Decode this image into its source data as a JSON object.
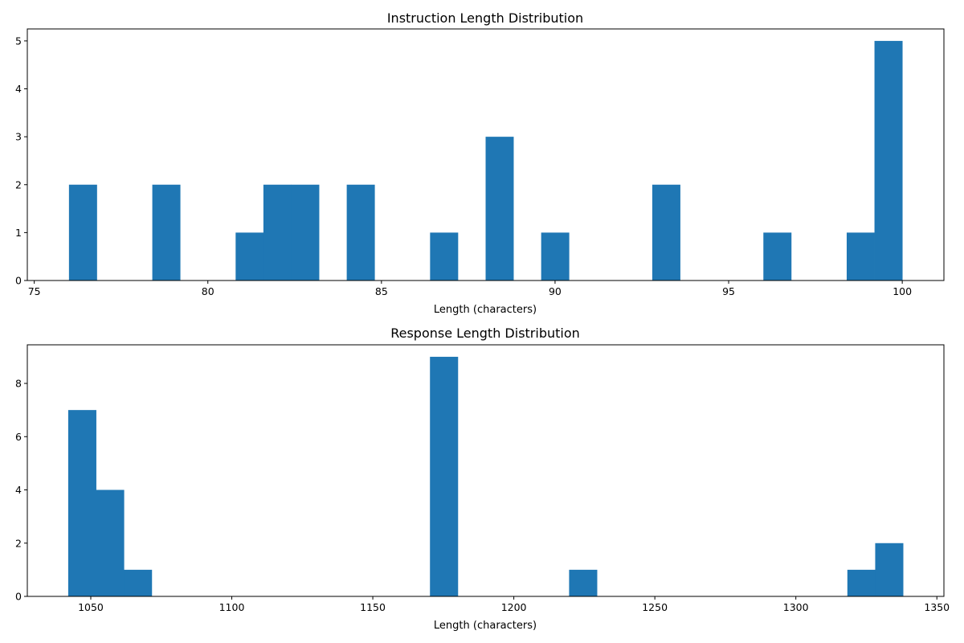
{
  "chart_data": [
    {
      "type": "bar",
      "title": "Instruction Length Distribution",
      "xlabel": "Length (characters)",
      "ylabel": "",
      "xlim": [
        74.8,
        101.2
      ],
      "ylim": [
        0,
        5.25
      ],
      "xticks": [
        75,
        80,
        85,
        90,
        95,
        100
      ],
      "yticks": [
        0,
        1,
        2,
        3,
        4,
        5
      ],
      "grid": false,
      "color": "#1f77b4",
      "bin_range": [
        76,
        100
      ],
      "bins": 30,
      "counts": [
        2,
        0,
        0,
        2,
        0,
        0,
        1,
        2,
        2,
        0,
        2,
        0,
        0,
        1,
        0,
        3,
        0,
        1,
        0,
        0,
        0,
        2,
        0,
        0,
        0,
        1,
        0,
        0,
        1,
        5
      ]
    },
    {
      "type": "bar",
      "title": "Response Length Distribution",
      "xlabel": "Length (characters)",
      "ylabel": "",
      "xlim": [
        1027.5,
        1352.5
      ],
      "ylim": [
        0,
        9.45
      ],
      "xticks": [
        1050,
        1100,
        1150,
        1200,
        1250,
        1300,
        1350
      ],
      "yticks": [
        0,
        2,
        4,
        6,
        8
      ],
      "grid": false,
      "color": "#1f77b4",
      "bin_range": [
        1042,
        1338
      ],
      "bins": 30,
      "counts": [
        7,
        4,
        1,
        0,
        0,
        0,
        0,
        0,
        0,
        0,
        0,
        0,
        0,
        9,
        0,
        0,
        0,
        0,
        1,
        0,
        0,
        0,
        0,
        0,
        0,
        0,
        0,
        0,
        1,
        2
      ]
    }
  ]
}
